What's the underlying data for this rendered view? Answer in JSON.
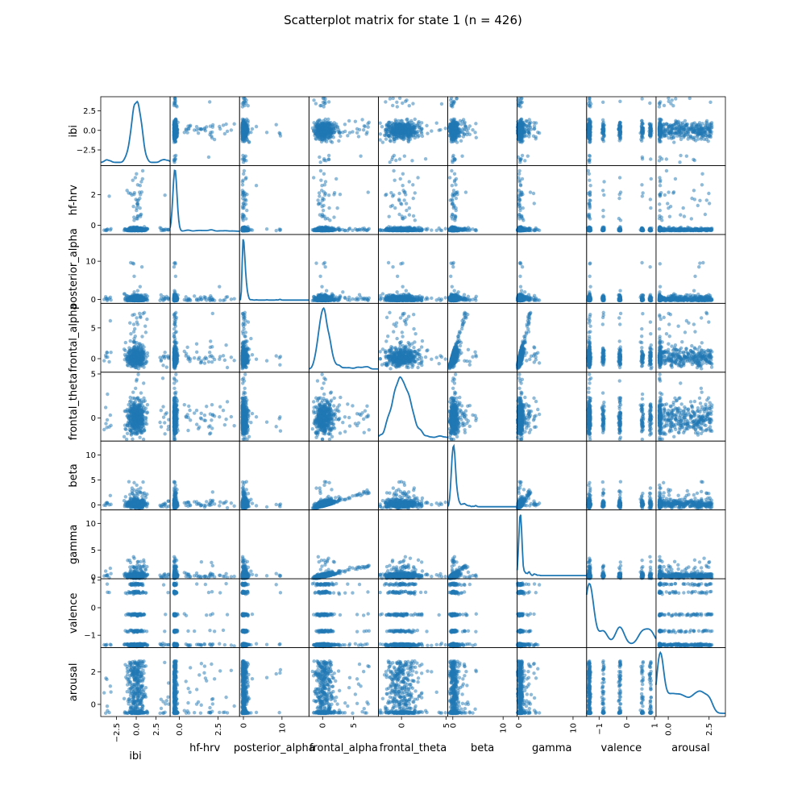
{
  "chart_data": {
    "type": "scatter",
    "title": "Scatterplot matrix for state 1 (n = 426)",
    "n": 426,
    "variables": [
      "ibi",
      "hf-hrv",
      "posterior_alpha",
      "frontal_alpha",
      "frontal_theta",
      "beta",
      "gamma",
      "valence",
      "arousal"
    ],
    "ranges": {
      "ibi": [
        -4.5,
        4.3
      ],
      "hf-hrv": [
        -0.6,
        3.9
      ],
      "posterior_alpha": [
        -1.0,
        17.0
      ],
      "frontal_alpha": [
        -2.2,
        9.0
      ],
      "frontal_theta": [
        -2.6,
        5.2
      ],
      "beta": [
        -1.0,
        12.8
      ],
      "gamma": [
        -0.3,
        12.5
      ],
      "valence": [
        -1.45,
        1.05
      ],
      "arousal": [
        -0.75,
        3.5
      ]
    },
    "ticks": {
      "ibi": [
        -2.5,
        0.0,
        2.5
      ],
      "hf-hrv": [
        0,
        2
      ],
      "hf-hrv_x": [
        0.0,
        2.5
      ],
      "posterior_alpha": [
        0,
        10
      ],
      "frontal_alpha": [
        0,
        5
      ],
      "frontal_theta": [
        0,
        5
      ],
      "beta": [
        0,
        5,
        10
      ],
      "beta_x": [
        0,
        10
      ],
      "gamma": [
        0,
        5,
        10
      ],
      "gamma_x": [
        0,
        10
      ],
      "valence": [
        -1,
        0,
        1
      ],
      "arousal": [
        0,
        2
      ],
      "arousal_x": [
        0.0,
        2.5
      ]
    },
    "y_tick_text": {
      "ibi": [
        "−2.5",
        "0.0",
        "2.5"
      ],
      "hf-hrv": [
        "0",
        "2"
      ],
      "posterior_alpha": [
        "0",
        "10"
      ],
      "frontal_alpha": [
        "0",
        "5"
      ],
      "frontal_theta": [
        "0",
        "5"
      ],
      "beta": [
        "0",
        "5",
        "10"
      ],
      "gamma": [
        "0",
        "5",
        "10"
      ],
      "valence": [
        "−1",
        "0",
        "1"
      ],
      "arousal": [
        "0",
        "2"
      ]
    },
    "x_tick_text": {
      "ibi": [
        "−2.5",
        "0.0",
        "2.5"
      ],
      "hf-hrv": [
        "0.0",
        "2.5"
      ],
      "posterior_alpha": [
        "0",
        "10"
      ],
      "frontal_alpha": [
        "0",
        "5"
      ],
      "frontal_theta": [
        "0",
        "5"
      ],
      "beta": [
        "0",
        "10"
      ],
      "gamma": [
        "0",
        "10"
      ],
      "valence": [
        "−1",
        "0",
        "1"
      ],
      "arousal": [
        "0.0",
        "2.5"
      ]
    },
    "diagonal": "kde",
    "colors": {
      "points": "#1f77b4",
      "line": "#1f77b4"
    },
    "point_alpha": 0.5,
    "grid": false
  }
}
